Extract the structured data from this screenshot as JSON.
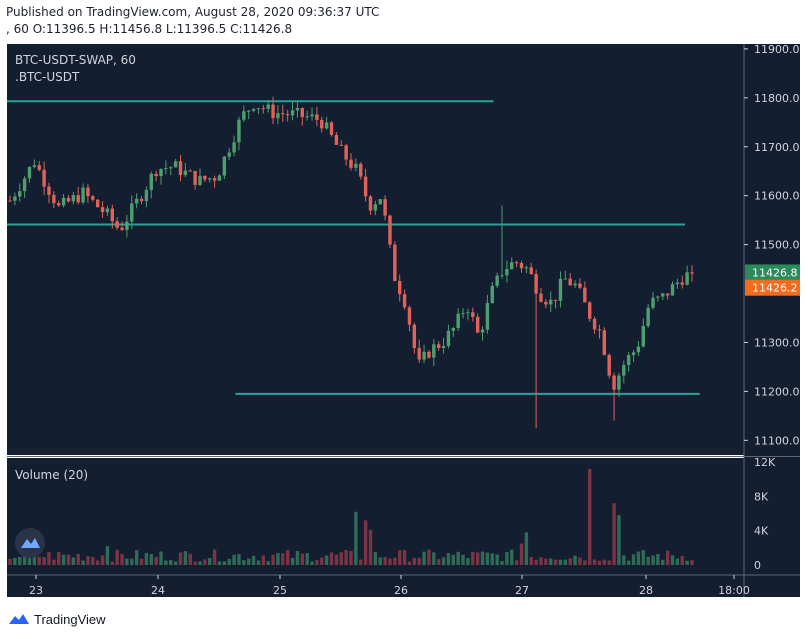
{
  "header": {
    "published": "Published on TradingView.com, August 28, 2020 09:36:37 UTC",
    "ohlc": ", 60 O:11396.5 H:11456.8 L:11396.5 C:11426.8"
  },
  "footer": {
    "brand": "TradingView"
  },
  "colors": {
    "background": "#131e30",
    "up": "#4f9e6f",
    "down": "#e0625a",
    "volume_up": "#2f6b57",
    "volume_down": "#7a3444",
    "level_line": "#26a69a",
    "last_price_badge": "#2a8a5c",
    "close_badge": "#f36b1f"
  },
  "chart_data": {
    "type": "candlestick",
    "title": "BTC-USDT-SWAP, 60",
    "subtitle": ".BTC-USDT",
    "y_ticks": [
      "11900.0",
      "11800.0",
      "11700.0",
      "11600.0",
      "11500.0",
      "11300.0",
      "11200.0",
      "11100.0"
    ],
    "x_ticks": [
      "23",
      "24",
      "25",
      "26",
      "27",
      "28",
      "18:00"
    ],
    "ylim": [
      11070,
      11910
    ],
    "price_badges": [
      "11426.8",
      "11426.2"
    ],
    "horizontal_levels": [
      {
        "price": 11793,
        "from": 0,
        "to": 0.66
      },
      {
        "price": 11541,
        "from": 0,
        "to": 0.92
      },
      {
        "price": 11195,
        "from": 0.31,
        "to": 0.94
      }
    ],
    "close_path": [
      [
        0,
        11590
      ],
      [
        4,
        11670
      ],
      [
        8,
        11575
      ],
      [
        12,
        11605
      ],
      [
        16,
        11560
      ],
      [
        18,
        11530
      ],
      [
        21,
        11590
      ],
      [
        24,
        11655
      ],
      [
        27,
        11660
      ],
      [
        31,
        11630
      ],
      [
        34,
        11640
      ],
      [
        38,
        11760
      ],
      [
        40,
        11790
      ],
      [
        43,
        11770
      ],
      [
        47,
        11765
      ],
      [
        51,
        11755
      ],
      [
        54,
        11695
      ],
      [
        57,
        11650
      ],
      [
        59,
        11580
      ],
      [
        61,
        11600
      ],
      [
        63,
        11440
      ],
      [
        65,
        11380
      ],
      [
        67,
        11250
      ],
      [
        69,
        11285
      ],
      [
        71,
        11300
      ],
      [
        73,
        11330
      ],
      [
        75,
        11380
      ],
      [
        77,
        11310
      ],
      [
        79,
        11400
      ],
      [
        81,
        11450
      ],
      [
        83,
        11465
      ],
      [
        85,
        11450
      ],
      [
        87,
        11400
      ],
      [
        89,
        11380
      ],
      [
        91,
        11430
      ],
      [
        93,
        11415
      ],
      [
        95,
        11360
      ],
      [
        97,
        11320
      ],
      [
        99,
        11210
      ],
      [
        101,
        11260
      ],
      [
        103,
        11290
      ],
      [
        105,
        11380
      ],
      [
        107,
        11390
      ],
      [
        109,
        11415
      ],
      [
        111,
        11440
      ],
      [
        112,
        11427
      ]
    ],
    "volume_panel": {
      "label": "Volume (20)",
      "y_ticks": [
        "12K",
        "8K",
        "4K",
        "0"
      ],
      "ylim": [
        0,
        12000
      ],
      "spikes": [
        {
          "t": 56.5,
          "value": 6200
        },
        {
          "t": 58,
          "value": 5200
        },
        {
          "t": 59.5,
          "value": 4100
        },
        {
          "t": 95,
          "value": 11200
        },
        {
          "t": 99,
          "value": 7200
        },
        {
          "t": 100,
          "value": 5800
        },
        {
          "t": 85,
          "value": 3800
        },
        {
          "t": 84,
          "value": 2500
        },
        {
          "t": 16,
          "value": 2200
        }
      ]
    }
  }
}
